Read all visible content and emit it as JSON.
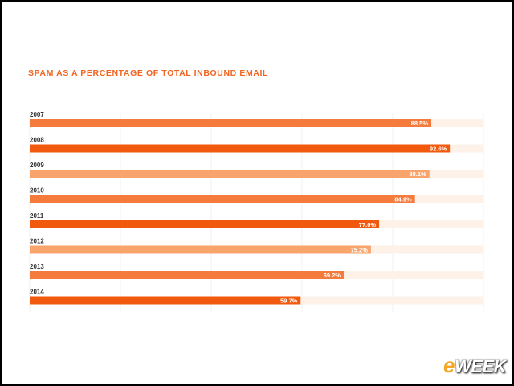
{
  "chart_data": {
    "type": "bar",
    "orientation": "horizontal",
    "title": "SPAM AS A PERCENTAGE OF TOTAL INBOUND EMAIL",
    "categories": [
      "2007",
      "2008",
      "2009",
      "2010",
      "2011",
      "2012",
      "2013",
      "2014"
    ],
    "values": [
      88.5,
      92.6,
      88.1,
      84.9,
      77.0,
      75.2,
      69.2,
      59.7
    ],
    "value_labels": [
      "88.5%",
      "92.6%",
      "88.1%",
      "84.9%",
      "77.0%",
      "75.2%",
      "69.2%",
      "59.7%"
    ],
    "xlim": [
      0,
      100
    ],
    "grid": true,
    "colors": {
      "title": "#f26522",
      "bar_dark": "#f15a0e",
      "bar_mid": "#f47b3c",
      "bar_light": "#f9a36d",
      "track": "#fdf1e8",
      "grid": "#e6e6e6"
    },
    "bar_color_keys": [
      "bar_mid",
      "bar_dark",
      "bar_light",
      "bar_mid",
      "bar_dark",
      "bar_light",
      "bar_mid",
      "bar_dark"
    ]
  },
  "logo": {
    "e": "e",
    "rest": "WEEK"
  }
}
